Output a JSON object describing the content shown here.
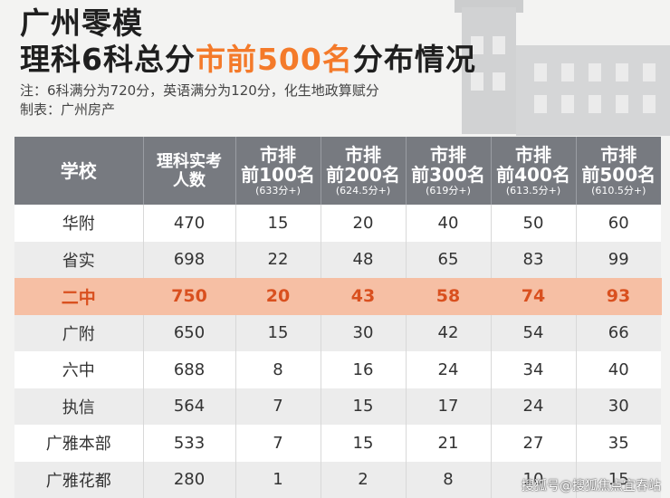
{
  "header": {
    "title_line1": "广州零模",
    "title_line2_pre": "理科6科总分",
    "title_line2_hl": "市前500名",
    "title_line2_post": "分布情况",
    "note": "注：6科满分为720分，英语满分为120分，化生地政算赋分",
    "credit": "制表：广州房产"
  },
  "table": {
    "columns": [
      {
        "main": "学校",
        "sub": ""
      },
      {
        "main": "理科实考\n人数",
        "sub": ""
      },
      {
        "main_l1": "市排",
        "main_l2": "前100名",
        "sub": "(633分+)"
      },
      {
        "main_l1": "市排",
        "main_l2": "前200名",
        "sub": "(624.5分+)"
      },
      {
        "main_l1": "市排",
        "main_l2": "前300名",
        "sub": "(619分+)"
      },
      {
        "main_l1": "市排",
        "main_l2": "前400名",
        "sub": "(613.5分+)"
      },
      {
        "main_l1": "市排",
        "main_l2": "前500名",
        "sub": "(610.5分+)"
      }
    ],
    "count_header_l1": "理科实考",
    "count_header_l2": "人数",
    "rows": [
      {
        "school": "华附",
        "count": "470",
        "top100": "15",
        "top200": "20",
        "top300": "40",
        "top400": "50",
        "top500": "60",
        "highlight": false
      },
      {
        "school": "省实",
        "count": "698",
        "top100": "22",
        "top200": "48",
        "top300": "65",
        "top400": "83",
        "top500": "99",
        "highlight": false
      },
      {
        "school": "二中",
        "count": "750",
        "top100": "20",
        "top200": "43",
        "top300": "58",
        "top400": "74",
        "top500": "93",
        "highlight": true
      },
      {
        "school": "广附",
        "count": "650",
        "top100": "15",
        "top200": "30",
        "top300": "42",
        "top400": "54",
        "top500": "66",
        "highlight": false
      },
      {
        "school": "六中",
        "count": "688",
        "top100": "8",
        "top200": "16",
        "top300": "24",
        "top400": "34",
        "top500": "40",
        "highlight": false
      },
      {
        "school": "执信",
        "count": "564",
        "top100": "7",
        "top200": "15",
        "top300": "17",
        "top400": "24",
        "top500": "30",
        "highlight": false
      },
      {
        "school": "广雅本部",
        "count": "533",
        "top100": "7",
        "top200": "15",
        "top300": "21",
        "top400": "27",
        "top500": "35",
        "highlight": false
      },
      {
        "school": "广雅花都",
        "count": "280",
        "top100": "1",
        "top200": "2",
        "top300": "8",
        "top400": "10",
        "top500": "15",
        "highlight": false
      }
    ]
  },
  "watermark": "搜狐号@搜狐焦点宜春站",
  "colors": {
    "accent": "#f47a2a",
    "header_bg": "#777a80",
    "highlight_row": "#f6bfa4",
    "highlight_text": "#d9501f"
  }
}
